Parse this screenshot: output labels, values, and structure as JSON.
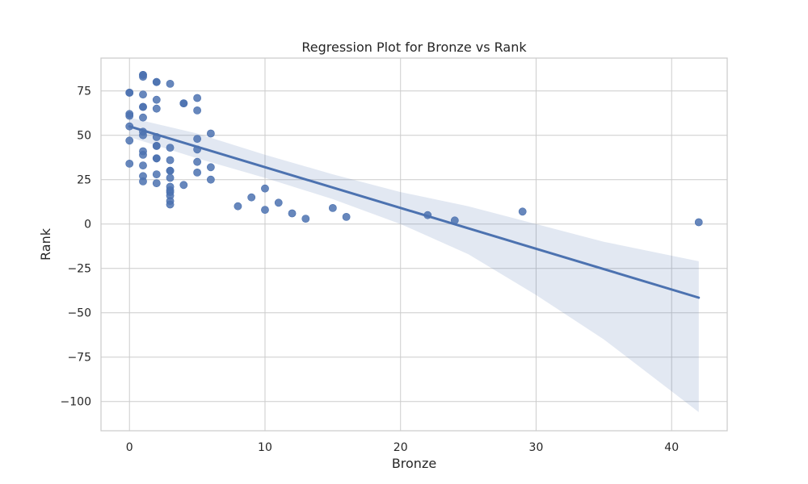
{
  "chart_data": {
    "type": "scatter",
    "title": "Regression Plot for Bronze vs Rank",
    "xlabel": "Bronze",
    "ylabel": "Rank",
    "xlim": [
      -2.1,
      44.1
    ],
    "ylim": [
      -116.5,
      93.5
    ],
    "xticks": [
      0,
      10,
      20,
      30,
      40
    ],
    "yticks": [
      -100,
      -75,
      -50,
      -25,
      0,
      25,
      50,
      75
    ],
    "grid": true,
    "colors": {
      "points": "#4c72b0",
      "line": "#4c72b0",
      "band": "#4c72b0",
      "grid": "#cccccc",
      "frame": "#cccccc"
    },
    "series": [
      {
        "x": [
          1,
          1,
          1,
          2,
          2,
          3,
          0,
          0,
          2,
          4,
          4,
          1,
          5,
          2,
          1,
          5,
          0,
          0,
          1,
          2,
          6,
          0,
          2,
          5,
          0,
          2,
          5,
          1,
          2,
          3,
          3,
          3,
          3,
          3,
          3,
          3,
          3,
          3,
          3,
          1,
          1,
          1,
          2,
          2,
          3,
          5,
          6,
          4,
          5,
          6,
          8,
          9,
          10,
          10,
          11,
          12,
          13,
          15,
          16,
          22,
          24,
          29,
          42,
          2,
          0,
          1,
          1,
          1,
          1
        ],
        "y": [
          84,
          84,
          83,
          80,
          80,
          79,
          74,
          74,
          70,
          68,
          68,
          66,
          71,
          65,
          60,
          64,
          62,
          61,
          52,
          49,
          51,
          55,
          44,
          48,
          47,
          37,
          42,
          39,
          37,
          43,
          36,
          30,
          26,
          21,
          19,
          18,
          16,
          13,
          11,
          41,
          33,
          27,
          28,
          23,
          30,
          35,
          32,
          22,
          29,
          25,
          10,
          15,
          20,
          8,
          12,
          6,
          3,
          9,
          4,
          5,
          2,
          7,
          1,
          44,
          34,
          24,
          73,
          66,
          50
        ]
      }
    ],
    "regression": {
      "x": [
        0,
        42
      ],
      "y": [
        55.0,
        -41.5
      ]
    },
    "confidence_band": {
      "x": [
        0,
        5,
        10,
        15,
        20,
        25,
        30,
        35,
        42
      ],
      "lower": [
        49,
        37,
        26,
        14,
        0,
        -17,
        -40,
        -65,
        -106
      ],
      "upper": [
        60,
        51,
        39,
        28,
        18,
        10,
        0,
        -10,
        -21
      ]
    }
  }
}
